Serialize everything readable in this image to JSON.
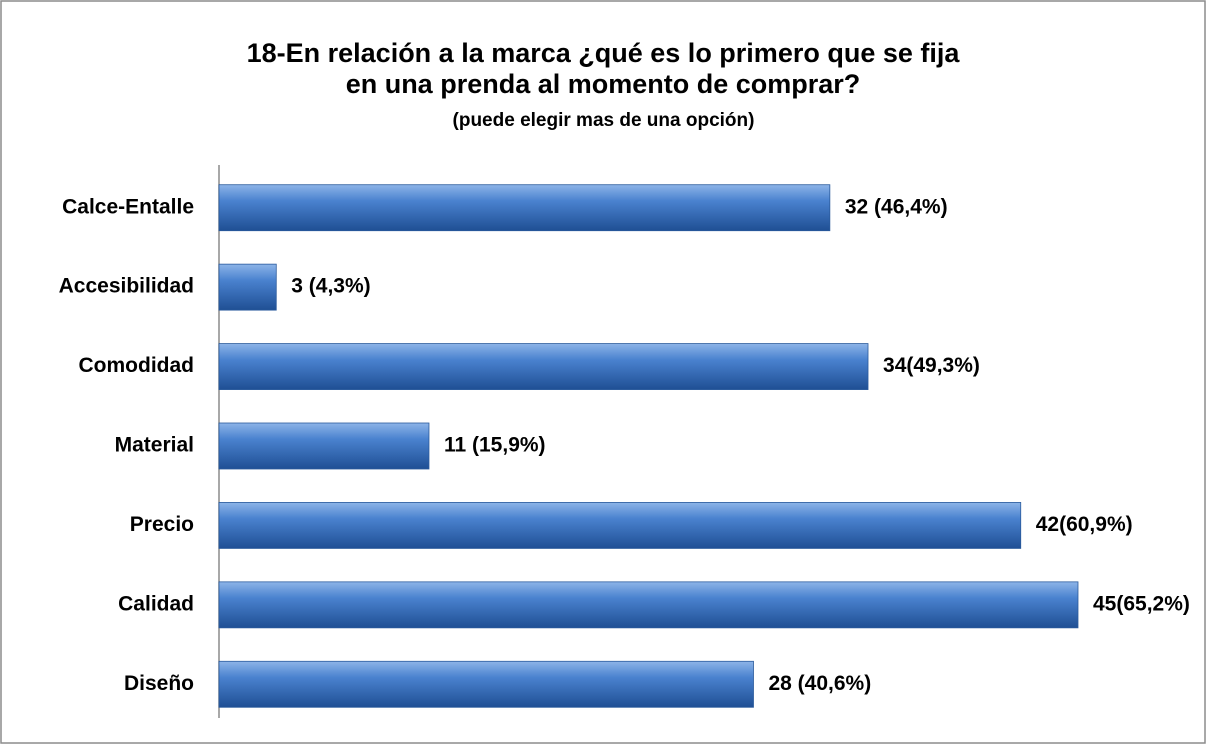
{
  "chart_data": {
    "type": "bar",
    "orientation": "horizontal",
    "title": "18-En relación a la marca ¿qué es lo primero que se fija en una prenda al momento de comprar?",
    "subtitle": "(puede elegir mas de una opción)",
    "categories": [
      "Calce-Entalle",
      "Accesibilidad",
      "Comodidad",
      "Material",
      "Precio",
      "Calidad",
      "Diseño"
    ],
    "values": [
      32,
      3,
      34,
      11,
      42,
      45,
      28
    ],
    "value_labels": [
      "32 (46,4%)",
      "3 (4,3%)",
      "34(49,3%)",
      "11 (15,9%)",
      "42(60,9%)",
      "45(65,2%)",
      "28 (40,6%)"
    ],
    "color": "#3a73c0"
  }
}
